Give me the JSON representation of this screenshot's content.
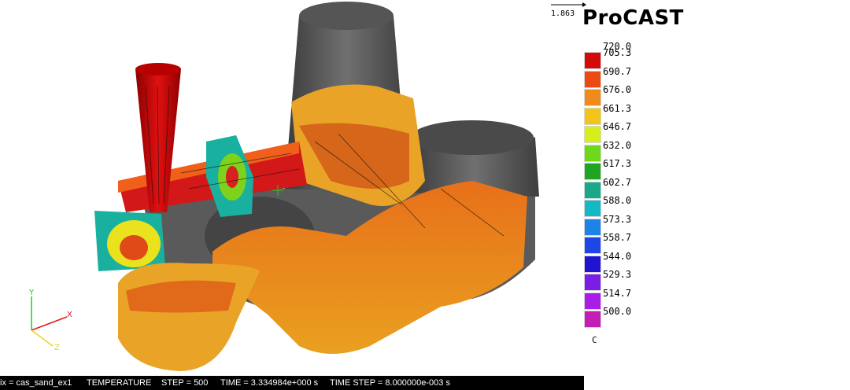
{
  "brand": "ProCAST",
  "vector_scale": "1.863",
  "legend": {
    "max_label": "720.0",
    "unit": "C",
    "entries": [
      {
        "label": "705.3",
        "color": "#d20a0a"
      },
      {
        "label": "690.7",
        "color": "#eb4a12"
      },
      {
        "label": "676.0",
        "color": "#f08a1a"
      },
      {
        "label": "661.3",
        "color": "#f2c51a"
      },
      {
        "label": "646.7",
        "color": "#d8ee1c"
      },
      {
        "label": "632.0",
        "color": "#6ed81a"
      },
      {
        "label": "617.3",
        "color": "#1fa51f"
      },
      {
        "label": "602.7",
        "color": "#1aa88a"
      },
      {
        "label": "588.0",
        "color": "#14b9c8"
      },
      {
        "label": "573.3",
        "color": "#1e82e6"
      },
      {
        "label": "558.7",
        "color": "#1e46e6"
      },
      {
        "label": "544.0",
        "color": "#1e14d2"
      },
      {
        "label": "529.3",
        "color": "#7a1ee6"
      },
      {
        "label": "514.7",
        "color": "#a81ee6"
      },
      {
        "label": "500.0",
        "color": "#c31eb4"
      }
    ]
  },
  "axes": {
    "x": "X",
    "y": "Y",
    "z": "Z"
  },
  "status": {
    "file": "ix = cas_sand_ex1",
    "quantity": "TEMPERATURE",
    "step": "STEP = 500",
    "time": "TIME = 3.334984e+000 s",
    "time_step": "TIME STEP = 8.000000e-003 s"
  }
}
